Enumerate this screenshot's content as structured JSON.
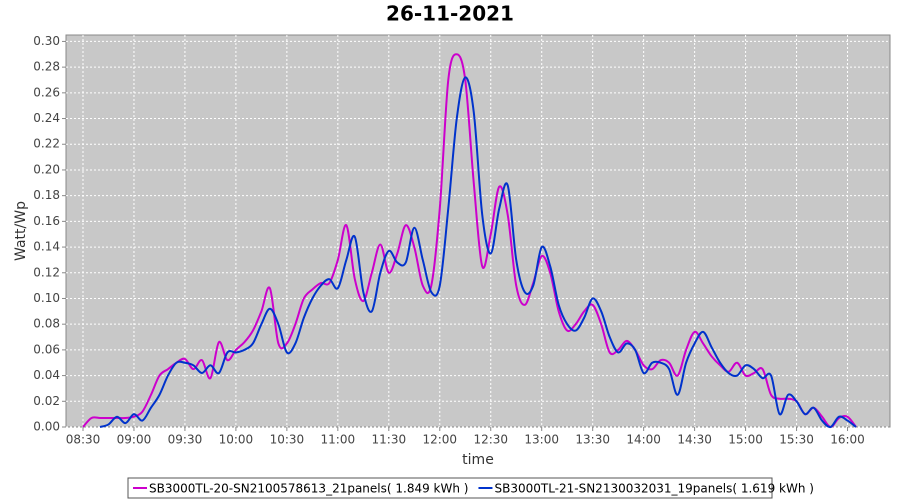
{
  "chart_data": {
    "type": "line",
    "title": "26-11-2021",
    "x_label": "time",
    "y_label": "Watt/Wp",
    "x": [
      "08:30",
      "08:35",
      "08:40",
      "08:45",
      "08:50",
      "08:55",
      "09:00",
      "09:05",
      "09:10",
      "09:15",
      "09:20",
      "09:25",
      "09:30",
      "09:35",
      "09:40",
      "09:45",
      "09:50",
      "09:55",
      "10:00",
      "10:05",
      "10:10",
      "10:15",
      "10:20",
      "10:25",
      "10:30",
      "10:35",
      "10:40",
      "10:45",
      "10:50",
      "10:55",
      "11:00",
      "11:05",
      "11:10",
      "11:15",
      "11:20",
      "11:25",
      "11:30",
      "11:35",
      "11:40",
      "11:45",
      "11:50",
      "11:55",
      "12:00",
      "12:05",
      "12:10",
      "12:15",
      "12:20",
      "12:25",
      "12:30",
      "12:35",
      "12:40",
      "12:45",
      "12:50",
      "12:55",
      "13:00",
      "13:05",
      "13:10",
      "13:15",
      "13:20",
      "13:25",
      "13:30",
      "13:35",
      "13:40",
      "13:45",
      "13:50",
      "13:55",
      "14:00",
      "14:05",
      "14:10",
      "14:15",
      "14:20",
      "14:25",
      "14:30",
      "14:35",
      "14:40",
      "14:45",
      "14:50",
      "14:55",
      "15:00",
      "15:05",
      "15:10",
      "15:15",
      "15:20",
      "15:25",
      "15:30",
      "15:35",
      "15:40",
      "15:45",
      "15:50",
      "15:55",
      "16:00",
      "16:05"
    ],
    "series": [
      {
        "name": "SB3000TL-20-SN2100578613_21panels( 1.849 kWh )",
        "color": "#cc00cc",
        "values": [
          0.0,
          0.007,
          0.007,
          0.007,
          0.007,
          0.007,
          0.008,
          0.012,
          0.025,
          0.04,
          0.045,
          0.05,
          0.053,
          0.045,
          0.052,
          0.038,
          0.066,
          0.052,
          0.06,
          0.066,
          0.075,
          0.09,
          0.108,
          0.065,
          0.065,
          0.08,
          0.1,
          0.107,
          0.112,
          0.112,
          0.13,
          0.157,
          0.115,
          0.098,
          0.12,
          0.142,
          0.12,
          0.135,
          0.157,
          0.14,
          0.11,
          0.11,
          0.17,
          0.27,
          0.29,
          0.27,
          0.19,
          0.125,
          0.15,
          0.187,
          0.165,
          0.11,
          0.095,
          0.112,
          0.133,
          0.12,
          0.09,
          0.075,
          0.08,
          0.09,
          0.095,
          0.08,
          0.058,
          0.06,
          0.067,
          0.06,
          0.048,
          0.045,
          0.052,
          0.05,
          0.04,
          0.06,
          0.074,
          0.065,
          0.055,
          0.048,
          0.043,
          0.05,
          0.04,
          0.042,
          0.045,
          0.025,
          0.022,
          0.022,
          0.02,
          0.01,
          0.015,
          0.008,
          0.0,
          0.007,
          0.008,
          0.0
        ]
      },
      {
        "name": "SB3000TL-21-SN2130032031_19panels( 1.619 kWh )",
        "color": "#0033cc",
        "values": [
          null,
          null,
          0.0,
          0.002,
          0.008,
          0.003,
          0.01,
          0.005,
          0.015,
          0.025,
          0.04,
          0.05,
          0.05,
          0.048,
          0.042,
          0.048,
          0.042,
          0.058,
          0.058,
          0.06,
          0.065,
          0.08,
          0.092,
          0.08,
          0.058,
          0.065,
          0.085,
          0.1,
          0.11,
          0.115,
          0.108,
          0.13,
          0.148,
          0.105,
          0.09,
          0.12,
          0.137,
          0.128,
          0.128,
          0.155,
          0.13,
          0.105,
          0.11,
          0.17,
          0.24,
          0.272,
          0.245,
          0.165,
          0.135,
          0.17,
          0.188,
          0.13,
          0.105,
          0.11,
          0.14,
          0.125,
          0.095,
          0.08,
          0.075,
          0.085,
          0.1,
          0.09,
          0.07,
          0.058,
          0.065,
          0.06,
          0.042,
          0.05,
          0.05,
          0.045,
          0.025,
          0.05,
          0.065,
          0.074,
          0.062,
          0.05,
          0.042,
          0.04,
          0.048,
          0.045,
          0.038,
          0.04,
          0.01,
          0.025,
          0.02,
          0.01,
          0.015,
          0.005,
          0.0,
          0.008,
          0.005,
          0.0
        ]
      }
    ],
    "xlim": [
      "08:20",
      "16:25"
    ],
    "xticks": [
      "08:30",
      "09:00",
      "09:30",
      "10:00",
      "10:30",
      "11:00",
      "11:30",
      "12:00",
      "12:30",
      "13:00",
      "13:30",
      "14:00",
      "14:30",
      "15:00",
      "15:30",
      "16:00"
    ],
    "ylim": [
      0,
      0.305
    ],
    "yticks": [
      {
        "value": 0,
        "label": "0.00"
      },
      {
        "value": 0.02,
        "label": "0.02"
      },
      {
        "value": 0.04,
        "label": "0.04"
      },
      {
        "value": 0.06,
        "label": "0.06"
      },
      {
        "value": 0.08,
        "label": "0.08"
      },
      {
        "value": 0.1,
        "label": "0.10"
      },
      {
        "value": 0.12,
        "label": "0.12"
      },
      {
        "value": 0.14,
        "label": "0.14"
      },
      {
        "value": 0.16,
        "label": "0.16"
      },
      {
        "value": 0.18,
        "label": "0.18"
      },
      {
        "value": 0.2,
        "label": "0.20"
      },
      {
        "value": 0.22,
        "label": "0.22"
      },
      {
        "value": 0.24,
        "label": "0.24"
      },
      {
        "value": 0.26,
        "label": "0.26"
      },
      {
        "value": 0.28,
        "label": "0.28"
      },
      {
        "value": 0.3,
        "label": "0.30"
      }
    ],
    "grid": true,
    "legend": "bottom"
  }
}
